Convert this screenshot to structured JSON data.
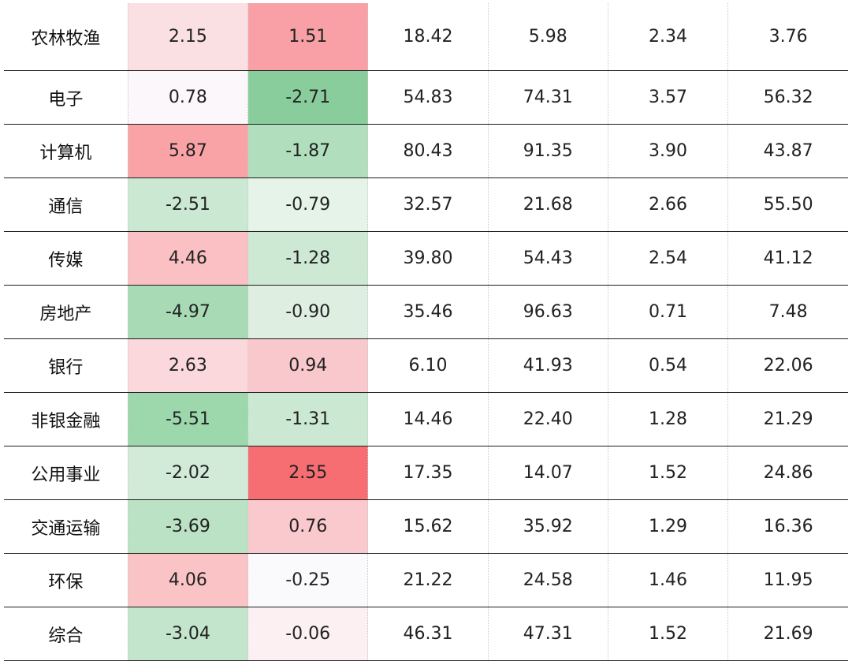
{
  "table": {
    "rows": [
      {
        "name": "农林牧渔",
        "values": [
          "2.15",
          "1.51",
          "18.42",
          "5.98",
          "2.34",
          "3.76"
        ],
        "fills": [
          "#fbe0e3",
          "#f8a0a5",
          "",
          "",
          "",
          ""
        ]
      },
      {
        "name": "电子",
        "values": [
          "0.78",
          "-2.71",
          "54.83",
          "74.31",
          "3.57",
          "56.32"
        ],
        "fills": [
          "#fbf7fa",
          "#8acd9c",
          "",
          "",
          "",
          ""
        ]
      },
      {
        "name": "计算机",
        "values": [
          "5.87",
          "-1.87",
          "80.43",
          "91.35",
          "3.90",
          "43.87"
        ],
        "fills": [
          "#f9a3a7",
          "#b1dfbd",
          "",
          "",
          "",
          ""
        ]
      },
      {
        "name": "通信",
        "values": [
          "-2.51",
          "-0.79",
          "32.57",
          "21.68",
          "2.66",
          "55.50"
        ],
        "fills": [
          "#cbe9d2",
          "#e6f3e9",
          "",
          "",
          "",
          ""
        ]
      },
      {
        "name": "传媒",
        "values": [
          "4.46",
          "-1.28",
          "39.80",
          "54.43",
          "2.54",
          "41.12"
        ],
        "fills": [
          "#fac0c3",
          "#cde9d4",
          "",
          "",
          "",
          ""
        ]
      },
      {
        "name": "房地产",
        "values": [
          "-4.97",
          "-0.90",
          "35.46",
          "96.63",
          "0.71",
          "7.48"
        ],
        "fills": [
          "#a8dbb5",
          "#deefe2",
          "",
          "",
          "",
          ""
        ]
      },
      {
        "name": "银行",
        "values": [
          "2.63",
          "0.94",
          "6.10",
          "41.93",
          "0.54",
          "22.06"
        ],
        "fills": [
          "#fad8dc",
          "#f9c8cc",
          "",
          "",
          "",
          ""
        ]
      },
      {
        "name": "非银金融",
        "values": [
          "-5.51",
          "-1.31",
          "14.46",
          "22.40",
          "1.28",
          "21.29"
        ],
        "fills": [
          "#9dd7ac",
          "#cbe8d2",
          "",
          "",
          "",
          ""
        ]
      },
      {
        "name": "公用事业",
        "values": [
          "-2.02",
          "2.55",
          "17.35",
          "14.07",
          "1.52",
          "24.86"
        ],
        "fills": [
          "#d2ebd9",
          "#f66d72",
          "",
          "",
          "",
          ""
        ]
      },
      {
        "name": "交通运输",
        "values": [
          "-3.69",
          "0.76",
          "15.62",
          "35.92",
          "1.29",
          "16.36"
        ],
        "fills": [
          "#bbe2c5",
          "#f9c9cd",
          "",
          "",
          "",
          ""
        ]
      },
      {
        "name": "环保",
        "values": [
          "4.06",
          "-0.25",
          "21.22",
          "24.58",
          "1.46",
          "11.95"
        ],
        "fills": [
          "#fac4c7",
          "#fafafc",
          "",
          "",
          "",
          ""
        ]
      },
      {
        "name": "综合",
        "values": [
          "-3.04",
          "-0.06",
          "46.31",
          "47.31",
          "1.52",
          "21.69"
        ],
        "fills": [
          "#c3e5cc",
          "#fcf0f3",
          "",
          "",
          "",
          ""
        ]
      }
    ]
  }
}
